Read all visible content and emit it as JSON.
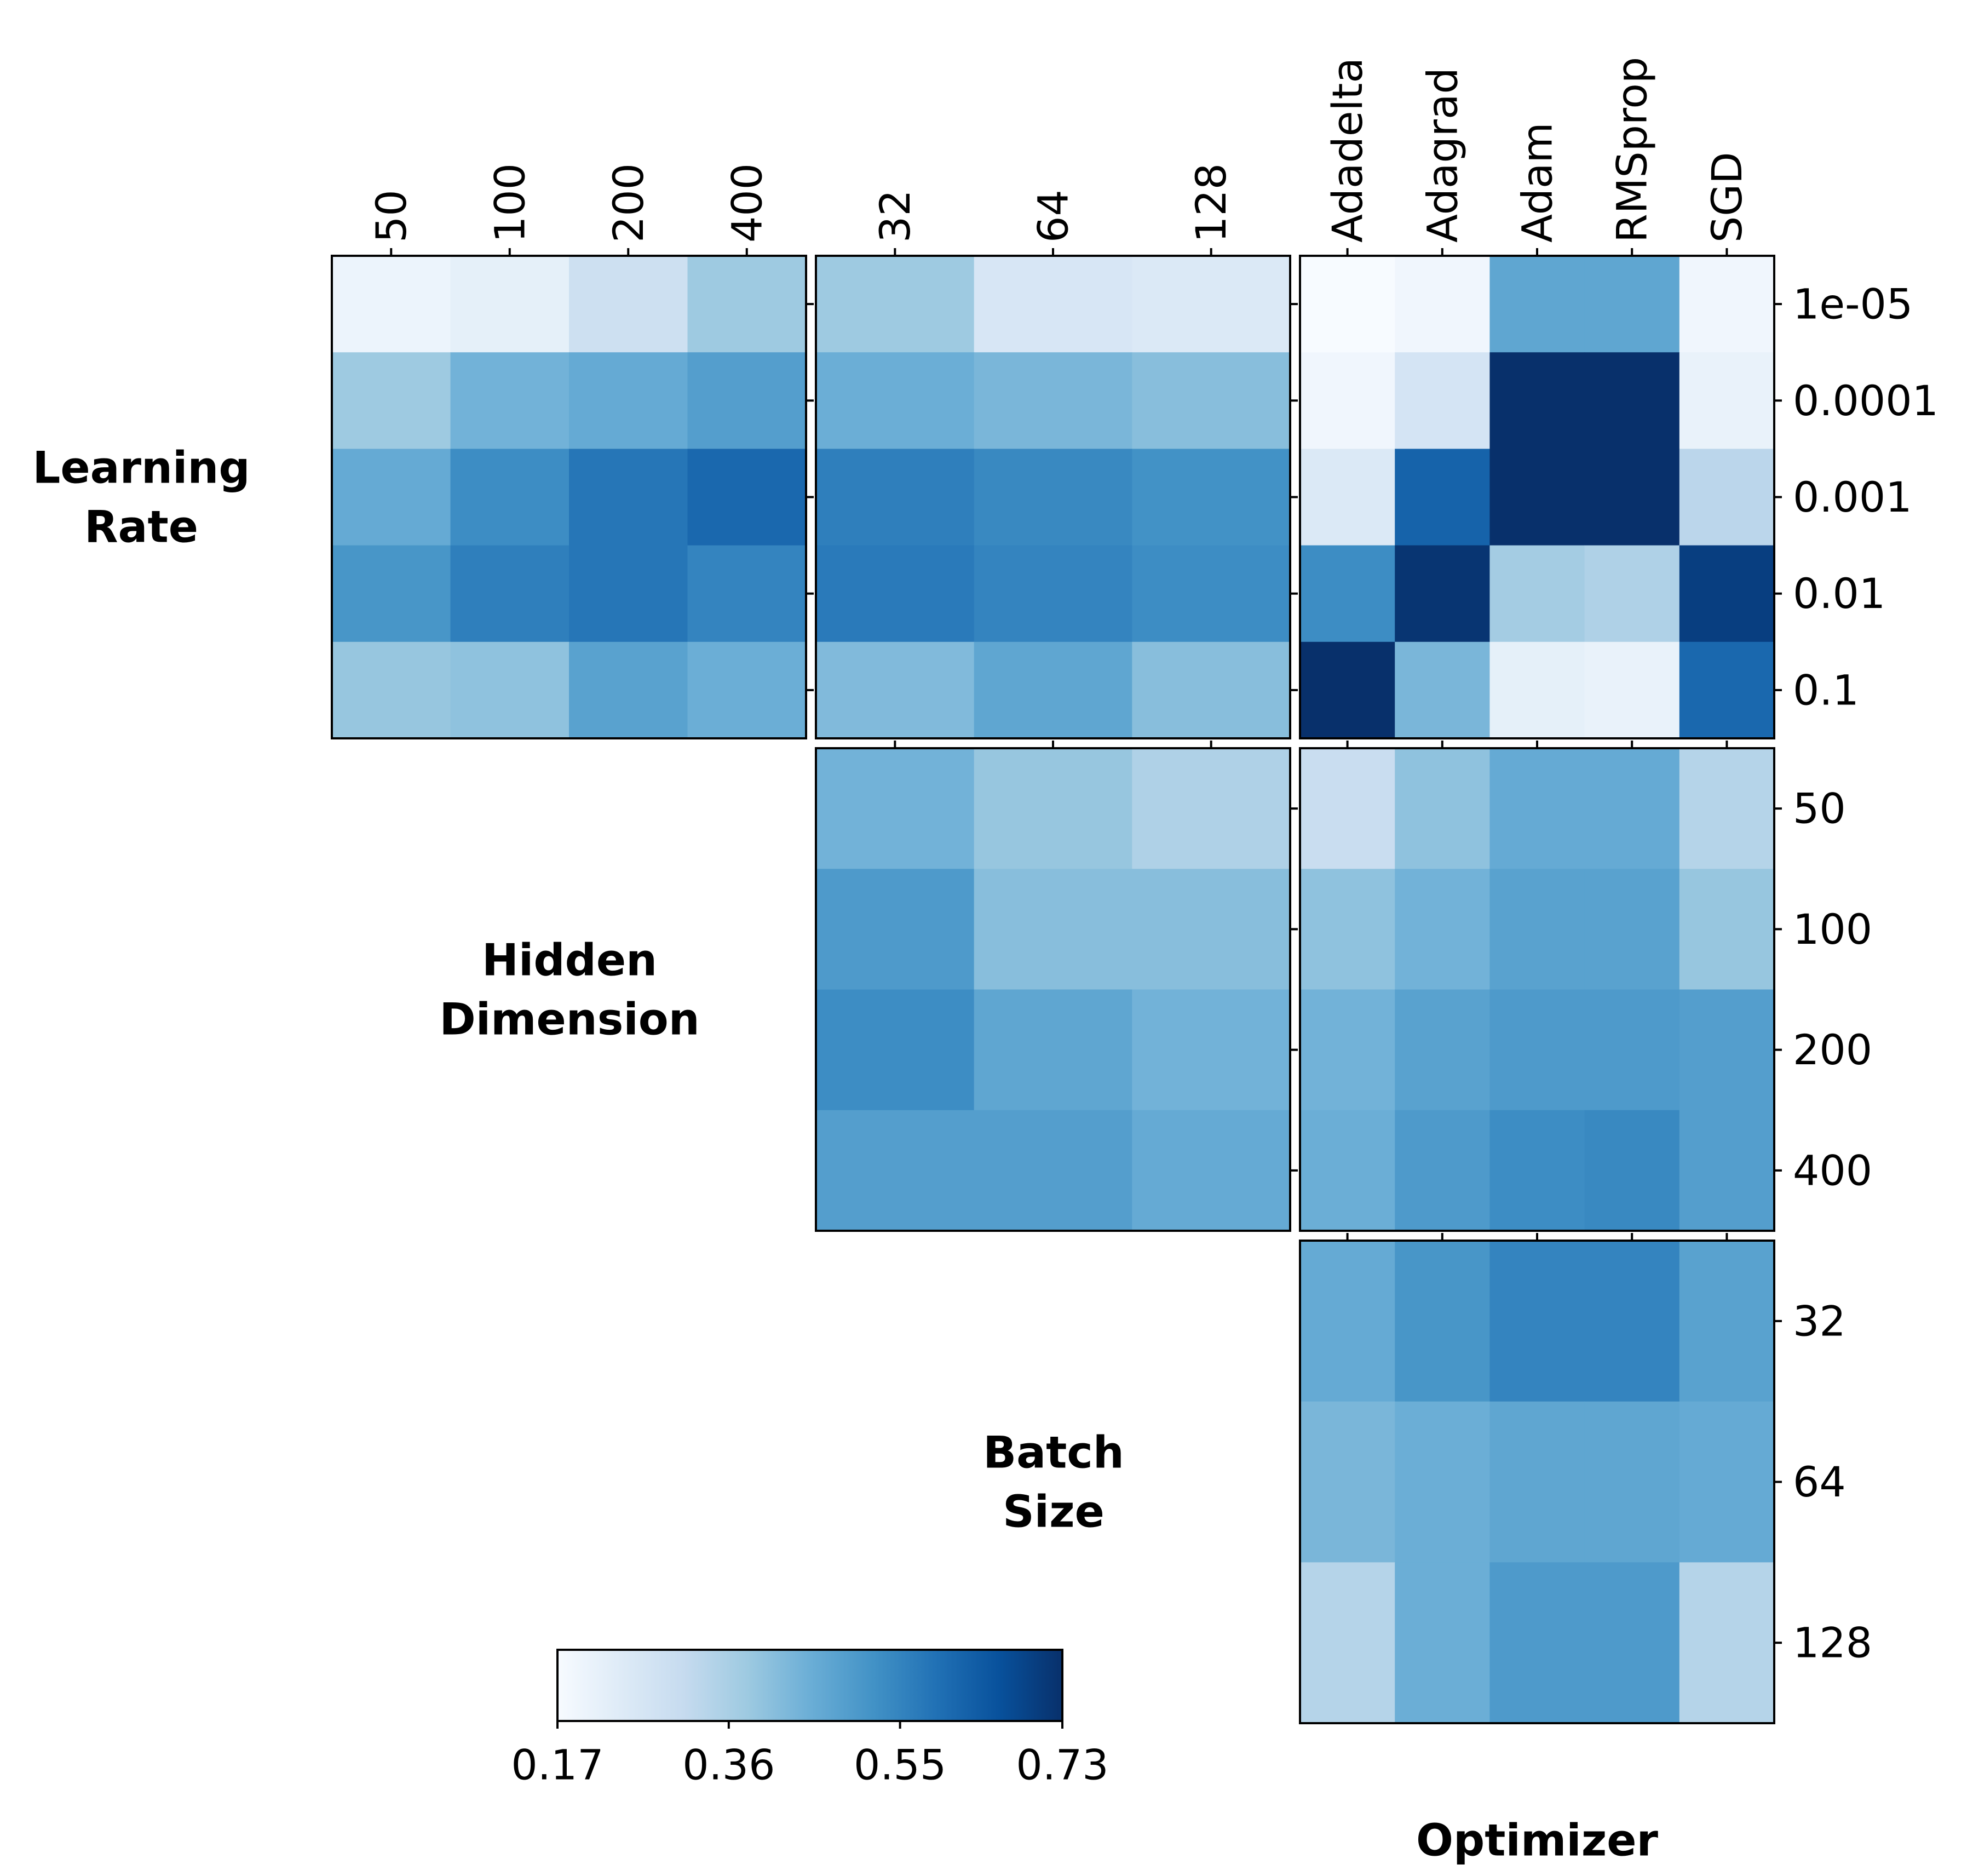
{
  "chart_data": {
    "type": "heatmap",
    "description_free": true,
    "colormap": "Blues",
    "colorbar": {
      "min": 0.17,
      "max": 0.73,
      "ticks": [
        "0.17",
        "0.36",
        "0.55",
        "0.73"
      ]
    },
    "variables": {
      "lr": {
        "label_lines": [
          "Learning",
          "Rate"
        ],
        "ticks": [
          "1e-05",
          "0.0001",
          "0.001",
          "0.01",
          "0.1"
        ]
      },
      "hd": {
        "label_lines": [
          "Hidden",
          "Dimension"
        ],
        "ticks": [
          "50",
          "100",
          "200",
          "400"
        ]
      },
      "bs": {
        "label_lines": [
          "Batch",
          "Size"
        ],
        "ticks": [
          "32",
          "64",
          "128"
        ]
      },
      "opt": {
        "label_lines": [
          "Optimizer"
        ],
        "ticks": [
          "Adadelta",
          "Adagrad",
          "Adam",
          "RMSprop",
          "SGD"
        ]
      }
    },
    "panels": [
      {
        "row": "lr",
        "col": "hd",
        "values": [
          [
            0.2,
            0.22,
            0.29,
            0.38
          ],
          [
            0.38,
            0.44,
            0.46,
            0.49
          ],
          [
            0.46,
            0.53,
            0.58,
            0.61
          ],
          [
            0.51,
            0.56,
            0.58,
            0.55
          ],
          [
            0.39,
            0.4,
            0.48,
            0.45
          ]
        ]
      },
      {
        "row": "lr",
        "col": "bs",
        "values": [
          [
            0.38,
            0.26,
            0.25
          ],
          [
            0.45,
            0.43,
            0.41
          ],
          [
            0.56,
            0.54,
            0.52
          ],
          [
            0.57,
            0.55,
            0.53
          ],
          [
            0.42,
            0.47,
            0.41
          ]
        ]
      },
      {
        "row": "lr",
        "col": "opt",
        "values": [
          [
            0.17,
            0.19,
            0.47,
            0.47,
            0.19
          ],
          [
            0.19,
            0.27,
            0.73,
            0.73,
            0.21
          ],
          [
            0.25,
            0.62,
            0.73,
            0.73,
            0.33
          ],
          [
            0.53,
            0.72,
            0.37,
            0.35,
            0.7
          ],
          [
            0.73,
            0.43,
            0.22,
            0.21,
            0.61
          ]
        ]
      },
      {
        "row": "hd",
        "col": "bs",
        "values": [
          [
            0.44,
            0.39,
            0.35
          ],
          [
            0.5,
            0.41,
            0.41
          ],
          [
            0.53,
            0.47,
            0.44
          ],
          [
            0.49,
            0.49,
            0.46
          ]
        ]
      },
      {
        "row": "hd",
        "col": "opt",
        "values": [
          [
            0.3,
            0.4,
            0.46,
            0.46,
            0.34
          ],
          [
            0.4,
            0.44,
            0.48,
            0.48,
            0.39
          ],
          [
            0.44,
            0.48,
            0.5,
            0.5,
            0.49
          ],
          [
            0.45,
            0.5,
            0.53,
            0.54,
            0.49
          ]
        ]
      },
      {
        "row": "bs",
        "col": "opt",
        "values": [
          [
            0.46,
            0.51,
            0.55,
            0.55,
            0.48
          ],
          [
            0.43,
            0.45,
            0.47,
            0.47,
            0.46
          ],
          [
            0.34,
            0.45,
            0.5,
            0.5,
            0.34
          ]
        ]
      }
    ]
  }
}
